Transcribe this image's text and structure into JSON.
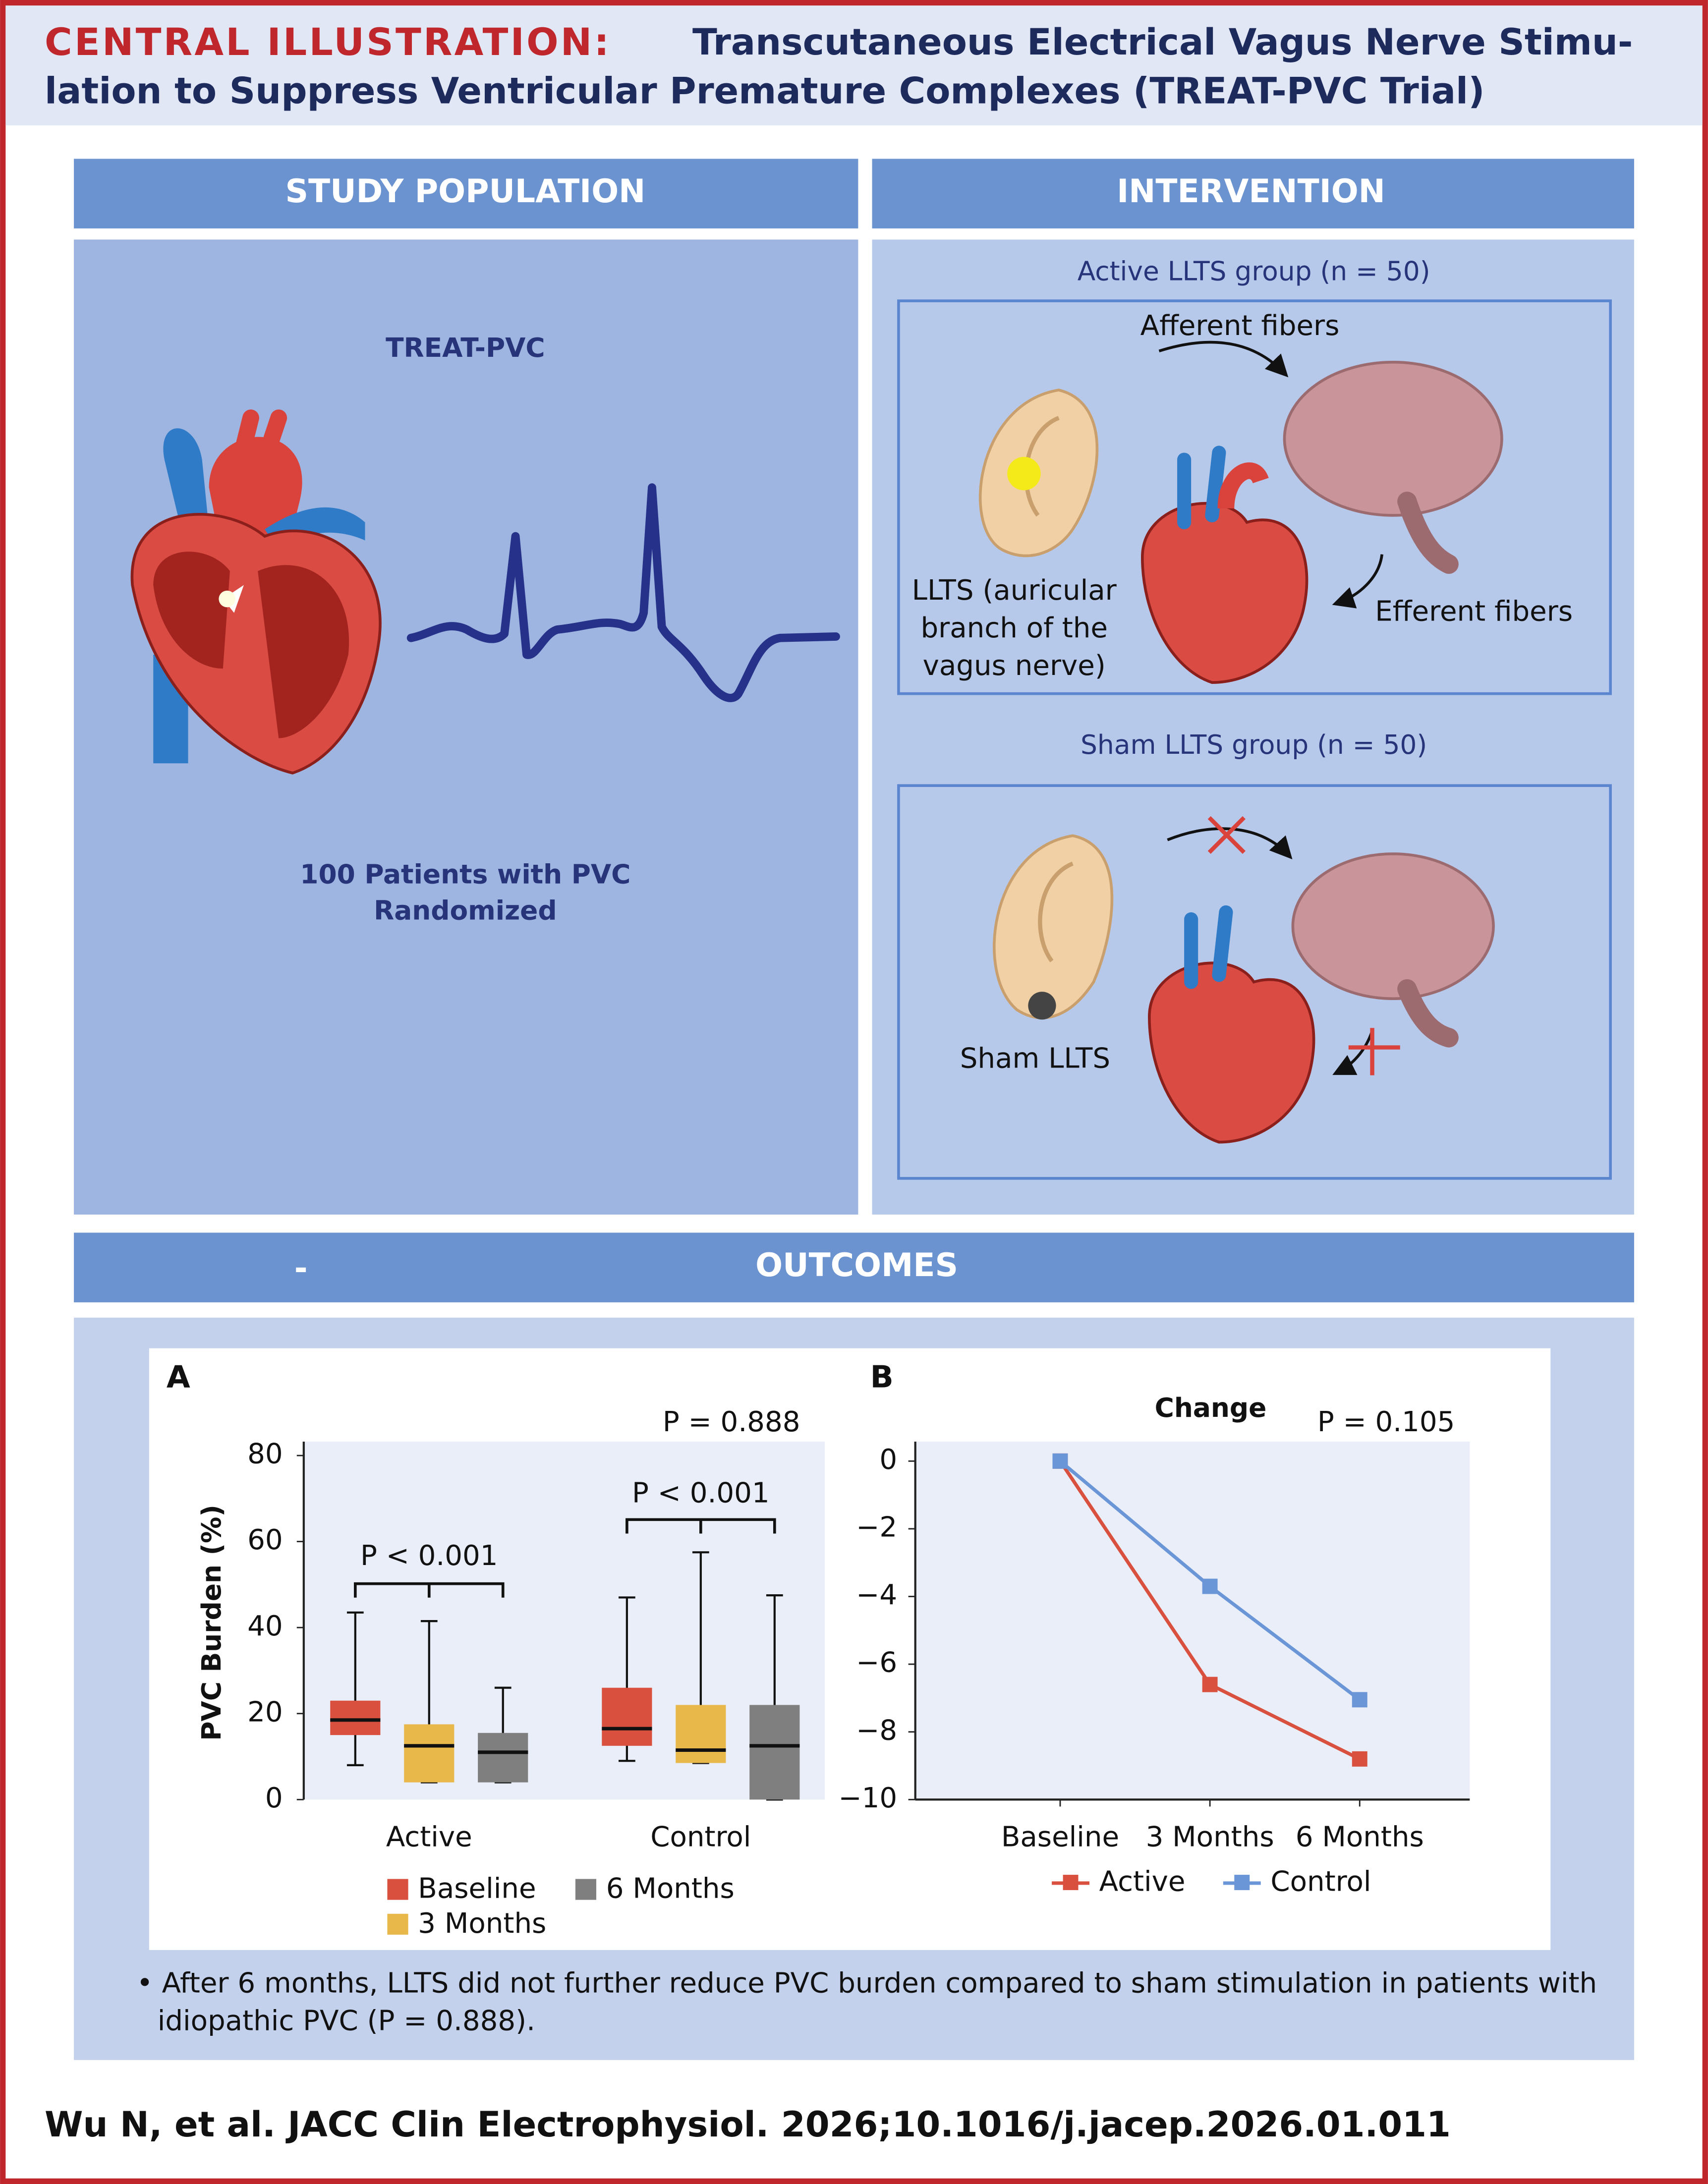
{
  "header": {
    "label": "CENTRAL ILLUSTRATION:",
    "title_lines": [
      "Transcutaneous Electrical Vagus Nerve Stimu-",
      "lation to Suppress Ventricular Premature Complexes (TREAT-PVC Trial)"
    ]
  },
  "study_population": {
    "heading": "STUDY POPULATION",
    "trial": "TREAT-PVC",
    "patients_lines": [
      "100 Patients with PVC",
      "Randomized"
    ]
  },
  "intervention": {
    "heading": "INTERVENTION",
    "active": {
      "title": "Active LLTS group (n = 50)",
      "afferent": "Afferent fibers",
      "efferent": "Efferent fibers",
      "stim_lines": [
        "LLTS (auricular",
        "branch of the",
        "vagus nerve)"
      ]
    },
    "sham": {
      "title": "Sham LLTS group (n = 50)",
      "stim": "Sham LLTS"
    }
  },
  "outcomes": {
    "heading": "OUTCOMES",
    "mark": "-",
    "note_lines": [
      "• After 6 months, LLTS did not further reduce PVC burden compared to sham stimulation in patients with",
      "idiopathic PVC (P = 0.888)."
    ]
  },
  "chart_data": [
    {
      "type": "box",
      "panel": "A",
      "ylabel": "PVC Burden (%)",
      "categories": [
        "Active",
        "Control"
      ],
      "series": [
        {
          "name": "Baseline",
          "color": "#d9503f",
          "boxes": [
            {
              "min": 8,
              "q1": 15,
              "median": 18.5,
              "q3": 23,
              "max": 43.5
            },
            {
              "min": 9,
              "q1": 12.5,
              "median": 16.5,
              "q3": 26,
              "max": 47
            }
          ]
        },
        {
          "name": "3 Months",
          "color": "#e8b84a",
          "boxes": [
            {
              "min": 4,
              "q1": 4,
              "median": 12.5,
              "q3": 17.5,
              "max": 41.5
            },
            {
              "min": 8.5,
              "q1": 8.5,
              "median": 11.5,
              "q3": 22,
              "max": 57.5
            }
          ]
        },
        {
          "name": "6 Months",
          "color": "#7f7f7f",
          "boxes": [
            {
              "min": 4,
              "q1": 4,
              "median": 11,
              "q3": 15.5,
              "max": 26
            },
            {
              "min": 0,
              "q1": 0,
              "median": 12.5,
              "q3": 22,
              "max": 47.5
            }
          ]
        }
      ],
      "ylim": [
        0,
        80
      ],
      "yticks": [
        0,
        20,
        40,
        60,
        80
      ],
      "annotations": [
        "P < 0.001",
        "P < 0.001",
        "P = 0.888"
      ]
    },
    {
      "type": "line",
      "panel": "B",
      "title": "Change",
      "annotation": "P = 0.105",
      "x": [
        "Baseline",
        "3 Months",
        "6 Months"
      ],
      "series": [
        {
          "name": "Active",
          "color": "#d9503f",
          "values": [
            0,
            -6.6,
            -8.8
          ]
        },
        {
          "name": "Control",
          "color": "#6a95d6",
          "values": [
            0,
            -3.7,
            -7.05
          ]
        }
      ],
      "ylim": [
        -10,
        0
      ],
      "yticks": [
        {
          "value": -10,
          "label": "−10"
        },
        {
          "value": -8,
          "label": "−8"
        },
        {
          "value": -6,
          "label": "−6"
        },
        {
          "value": -4,
          "label": "−4"
        },
        {
          "value": -2,
          "label": "−2"
        },
        0
      ]
    }
  ],
  "citation": "Wu N, et al. JACC Clin Electrophysiol. 2026;10.1016/j.jacep.2026.01.011"
}
